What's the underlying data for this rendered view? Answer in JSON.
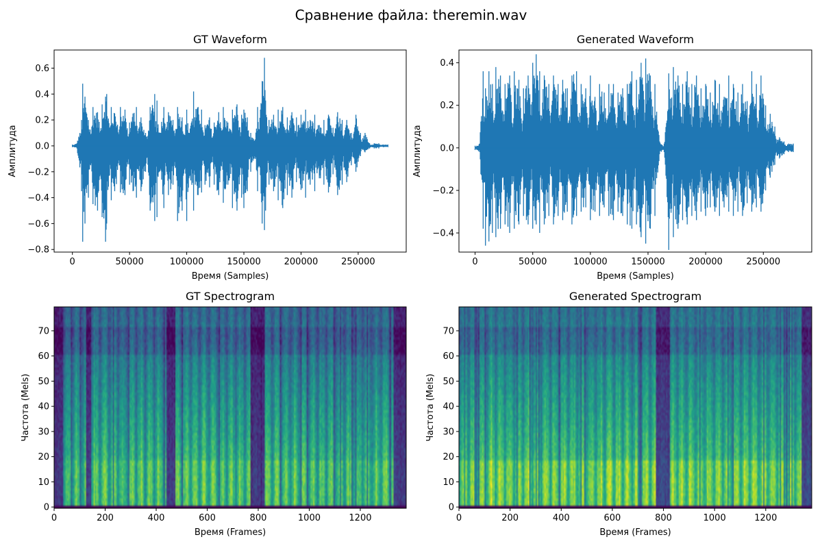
{
  "figure": {
    "suptitle": "Сравнение файла: theremin.wav"
  },
  "colors": {
    "waveform": "#1f77b4",
    "colormap": [
      "#440154",
      "#482878",
      "#3e4989",
      "#31688e",
      "#26828e",
      "#1f9e89",
      "#35b779",
      "#6ece58",
      "#b5de2b",
      "#fde725"
    ]
  },
  "chart_data": [
    {
      "type": "line",
      "title": "GT Waveform",
      "xlabel": "Время (Samples)",
      "ylabel": "Амплитуда",
      "xlim": [
        -16000,
        292000
      ],
      "ylim": [
        -0.82,
        0.74
      ],
      "xticks": [
        0,
        50000,
        100000,
        150000,
        200000,
        250000
      ],
      "xtick_labels": [
        "0",
        "50000",
        "100000",
        "150000",
        "200000",
        "250000"
      ],
      "yticks": [
        -0.8,
        -0.6,
        -0.4,
        -0.2,
        0.0,
        0.2,
        0.4,
        0.6
      ],
      "ytick_labels": [
        "−0.8",
        "−0.6",
        "−0.4",
        "−0.2",
        "0.0",
        "0.2",
        "0.4",
        "0.6"
      ],
      "grid": false,
      "sample_count": 276000,
      "envelope": {
        "x": [
          0,
          4000,
          8000,
          9000,
          11000,
          14000,
          18000,
          22000,
          26000,
          29000,
          30000,
          34000,
          37000,
          42000,
          46000,
          50000,
          53000,
          56000,
          60000,
          64000,
          68000,
          72000,
          74000,
          76000,
          80000,
          84000,
          88000,
          92000,
          96000,
          100000,
          102000,
          106000,
          110000,
          113000,
          116000,
          120000,
          124000,
          128000,
          132000,
          136000,
          140000,
          144000,
          148000,
          150000,
          153000,
          156000,
          160000,
          162000,
          166000,
          168000,
          169000,
          172000,
          176000,
          180000,
          184000,
          188000,
          192000,
          196000,
          200000,
          204000,
          208000,
          212000,
          216000,
          220000,
          224000,
          228000,
          232000,
          236000,
          240000,
          244000,
          248000,
          252000,
          256000,
          260000,
          264000,
          268000,
          272000,
          276000
        ],
        "upper": [
          0.01,
          0.02,
          0.2,
          0.48,
          0.38,
          0.2,
          0.3,
          0.26,
          0.32,
          0.38,
          0.4,
          0.3,
          0.25,
          0.3,
          0.28,
          0.18,
          0.25,
          0.3,
          0.22,
          0.1,
          0.3,
          0.4,
          0.35,
          0.1,
          0.3,
          0.26,
          0.2,
          0.3,
          0.22,
          0.28,
          0.1,
          0.42,
          0.3,
          0.28,
          0.16,
          0.22,
          0.18,
          0.26,
          0.3,
          0.18,
          0.28,
          0.32,
          0.24,
          0.28,
          0.22,
          0.1,
          0.05,
          0.3,
          0.5,
          0.68,
          0.35,
          0.2,
          0.24,
          0.28,
          0.3,
          0.22,
          0.26,
          0.22,
          0.24,
          0.28,
          0.2,
          0.24,
          0.16,
          0.2,
          0.24,
          0.14,
          0.26,
          0.2,
          0.2,
          0.1,
          0.24,
          0.1,
          0.1,
          0.02,
          0.02,
          0.02,
          0.01,
          0.01
        ],
        "lower": [
          -0.01,
          -0.02,
          -0.35,
          -0.74,
          -0.6,
          -0.4,
          -0.45,
          -0.5,
          -0.55,
          -0.74,
          -0.6,
          -0.42,
          -0.35,
          -0.36,
          -0.38,
          -0.3,
          -0.35,
          -0.4,
          -0.35,
          -0.2,
          -0.5,
          -0.58,
          -0.55,
          -0.2,
          -0.48,
          -0.38,
          -0.3,
          -0.58,
          -0.5,
          -0.58,
          -0.25,
          -0.5,
          -0.38,
          -0.36,
          -0.3,
          -0.32,
          -0.3,
          -0.38,
          -0.44,
          -0.3,
          -0.48,
          -0.5,
          -0.4,
          -0.48,
          -0.35,
          -0.2,
          -0.1,
          -0.35,
          -0.6,
          -0.65,
          -0.5,
          -0.3,
          -0.35,
          -0.42,
          -0.48,
          -0.38,
          -0.4,
          -0.28,
          -0.34,
          -0.4,
          -0.3,
          -0.35,
          -0.25,
          -0.3,
          -0.36,
          -0.22,
          -0.38,
          -0.3,
          -0.28,
          -0.15,
          -0.2,
          -0.08,
          -0.05,
          -0.02,
          -0.02,
          -0.02,
          -0.01,
          -0.01
        ]
      }
    },
    {
      "type": "line",
      "title": "Generated Waveform",
      "xlabel": "Время (Samples)",
      "ylabel": "Амплитуда",
      "xlim": [
        -14000,
        292000
      ],
      "ylim": [
        -0.49,
        0.46
      ],
      "xticks": [
        0,
        50000,
        100000,
        150000,
        200000,
        250000
      ],
      "xtick_labels": [
        "0",
        "50000",
        "100000",
        "150000",
        "200000",
        "250000"
      ],
      "yticks": [
        -0.4,
        -0.2,
        0.0,
        0.2,
        0.4
      ],
      "ytick_labels": [
        "−0.4",
        "−0.2",
        "0.0",
        "0.2",
        "0.4"
      ],
      "grid": false,
      "sample_count": 276000,
      "envelope": {
        "x": [
          0,
          4000,
          7000,
          9000,
          12000,
          15000,
          18000,
          22000,
          26000,
          30000,
          34000,
          38000,
          42000,
          46000,
          50000,
          53000,
          56000,
          60000,
          64000,
          68000,
          72000,
          76000,
          80000,
          84000,
          88000,
          92000,
          96000,
          100000,
          104000,
          108000,
          112000,
          116000,
          120000,
          124000,
          128000,
          132000,
          136000,
          140000,
          144000,
          148000,
          152000,
          156000,
          160000,
          164000,
          168000,
          172000,
          176000,
          180000,
          184000,
          188000,
          192000,
          196000,
          200000,
          204000,
          208000,
          212000,
          216000,
          220000,
          224000,
          228000,
          232000,
          236000,
          240000,
          244000,
          248000,
          252000,
          256000,
          260000,
          264000,
          268000,
          272000,
          276000
        ],
        "upper": [
          0.01,
          0.02,
          0.36,
          0.28,
          0.36,
          0.3,
          0.38,
          0.34,
          0.3,
          0.34,
          0.36,
          0.32,
          0.28,
          0.34,
          0.4,
          0.44,
          0.36,
          0.34,
          0.3,
          0.34,
          0.3,
          0.32,
          0.28,
          0.34,
          0.36,
          0.3,
          0.28,
          0.34,
          0.24,
          0.3,
          0.26,
          0.3,
          0.3,
          0.26,
          0.28,
          0.3,
          0.36,
          0.32,
          0.4,
          0.42,
          0.34,
          0.3,
          0.03,
          0.02,
          0.35,
          0.38,
          0.34,
          0.3,
          0.36,
          0.3,
          0.34,
          0.28,
          0.3,
          0.26,
          0.32,
          0.3,
          0.24,
          0.34,
          0.3,
          0.26,
          0.3,
          0.22,
          0.36,
          0.3,
          0.34,
          0.2,
          0.16,
          0.1,
          0.05,
          0.03,
          0.02,
          0.02
        ],
        "lower": [
          -0.01,
          -0.02,
          -0.38,
          -0.46,
          -0.44,
          -0.4,
          -0.42,
          -0.38,
          -0.36,
          -0.4,
          -0.38,
          -0.36,
          -0.32,
          -0.36,
          -0.38,
          -0.36,
          -0.4,
          -0.36,
          -0.32,
          -0.36,
          -0.32,
          -0.34,
          -0.3,
          -0.36,
          -0.32,
          -0.3,
          -0.28,
          -0.34,
          -0.3,
          -0.32,
          -0.28,
          -0.32,
          -0.34,
          -0.3,
          -0.32,
          -0.36,
          -0.38,
          -0.36,
          -0.42,
          -0.45,
          -0.38,
          -0.32,
          -0.03,
          -0.02,
          -0.48,
          -0.42,
          -0.38,
          -0.34,
          -0.36,
          -0.32,
          -0.34,
          -0.3,
          -0.32,
          -0.28,
          -0.3,
          -0.32,
          -0.28,
          -0.3,
          -0.32,
          -0.3,
          -0.32,
          -0.26,
          -0.3,
          -0.28,
          -0.3,
          -0.2,
          -0.14,
          -0.08,
          -0.05,
          -0.03,
          -0.02,
          -0.02
        ]
      }
    },
    {
      "type": "heatmap",
      "title": "GT Spectrogram",
      "xlabel": "Время (Frames)",
      "ylabel": "Частота (Mels)",
      "xlim": [
        0,
        1380
      ],
      "ylim": [
        -0.5,
        79.5
      ],
      "xticks": [
        0,
        200,
        400,
        600,
        800,
        1000,
        1200
      ],
      "xtick_labels": [
        "0",
        "200",
        "400",
        "600",
        "800",
        "1000",
        "1200"
      ],
      "yticks": [
        0,
        10,
        20,
        30,
        40,
        50,
        60,
        70
      ],
      "ytick_labels": [
        "0",
        "10",
        "20",
        "30",
        "40",
        "50",
        "60",
        "70"
      ],
      "colormap": "viridis",
      "n_frames": 1380,
      "n_mels": 80,
      "silence_frames": [
        [
          0,
          30
        ],
        [
          125,
          140
        ],
        [
          440,
          470
        ],
        [
          770,
          820
        ],
        [
          1330,
          1380
        ]
      ]
    },
    {
      "type": "heatmap",
      "title": "Generated Spectrogram",
      "xlabel": "Время (Frames)",
      "ylabel": "Частота (Mels)",
      "xlim": [
        0,
        1380
      ],
      "ylim": [
        -0.5,
        79.5
      ],
      "xticks": [
        0,
        200,
        400,
        600,
        800,
        1000,
        1200
      ],
      "xtick_labels": [
        "0",
        "200",
        "400",
        "600",
        "800",
        "1000",
        "1200"
      ],
      "yticks": [
        0,
        10,
        20,
        30,
        40,
        50,
        60,
        70
      ],
      "ytick_labels": [
        "0",
        "10",
        "20",
        "30",
        "40",
        "50",
        "60",
        "70"
      ],
      "colormap": "viridis",
      "n_frames": 1380,
      "n_mels": 80,
      "silence_frames": [
        [
          770,
          820
        ],
        [
          1340,
          1380
        ]
      ]
    }
  ]
}
